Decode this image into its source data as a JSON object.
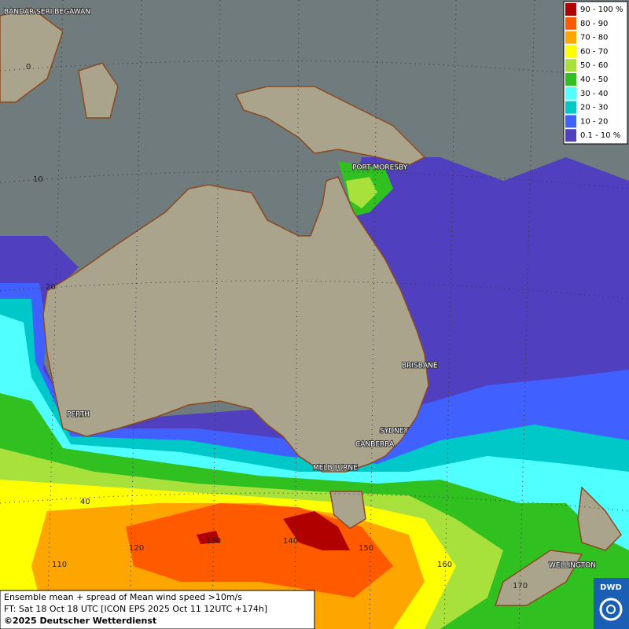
{
  "legend": [
    {
      "label": "90 - 100 %",
      "color": "#b00000"
    },
    {
      "label": "80 - 90",
      "color": "#ff5a00"
    },
    {
      "label": "70 - 80",
      "color": "#ffa500"
    },
    {
      "label": "60 - 70",
      "color": "#ffff00"
    },
    {
      "label": "50 - 60",
      "color": "#a8e03c"
    },
    {
      "label": "40 - 50",
      "color": "#30c020"
    },
    {
      "label": "30 - 40",
      "color": "#50ffff"
    },
    {
      "label": "20 - 30",
      "color": "#00c8c8"
    },
    {
      "label": "10 - 20",
      "color": "#4060ff"
    },
    {
      "label": "0.1 - 10 %",
      "color": "#5040c0"
    }
  ],
  "cities": [
    "BANDAR SERI BEGAWAN",
    "PORT MORESBY",
    "BRISBANE",
    "PERTH",
    "SYDNEY",
    "CANBERRA",
    "MELBOURNE",
    "WELLINGTON"
  ],
  "latitude_labels": [
    "0",
    "10",
    "20",
    "40"
  ],
  "longitude_labels": [
    "110",
    "120",
    "130",
    "140",
    "150",
    "160",
    "170"
  ],
  "caption": {
    "line1": "Ensemble mean + spread of Mean wind speed >10m/s",
    "line2": "FT: Sat 18 Oct 18 UTC [ICON EPS 2025 Oct 11 12UTC +174h]",
    "line3": "©2025 Deutscher Wetterdienst"
  },
  "logo": "DWD"
}
